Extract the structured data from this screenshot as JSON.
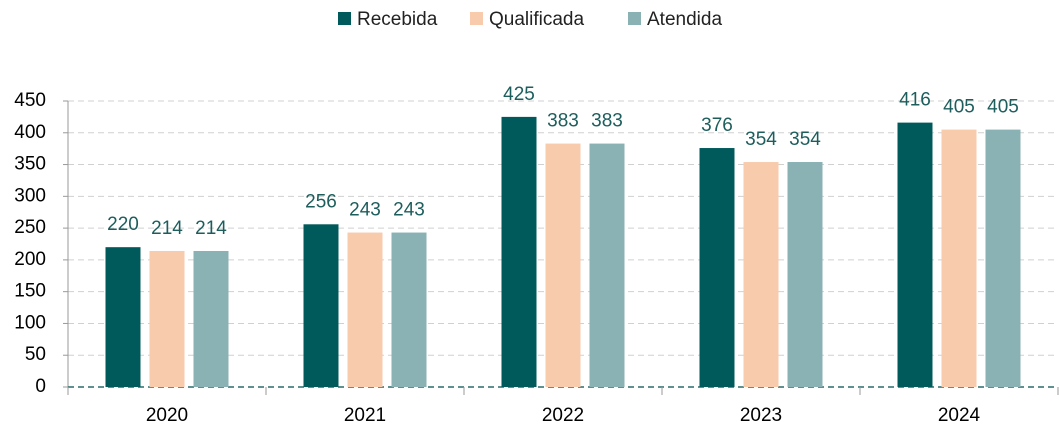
{
  "chart_data": {
    "type": "bar",
    "categories": [
      "2020",
      "2021",
      "2022",
      "2023",
      "2024"
    ],
    "series": [
      {
        "name": "Recebida",
        "color": "#005a5b",
        "values": [
          220,
          256,
          425,
          376,
          416
        ]
      },
      {
        "name": "Qualificada",
        "color": "#f8cbad",
        "values": [
          214,
          243,
          383,
          354,
          405
        ]
      },
      {
        "name": "Atendida",
        "color": "#8ab1b3",
        "values": [
          214,
          243,
          383,
          354,
          405
        ]
      }
    ],
    "ylim": [
      0,
      450
    ],
    "yticks": [
      0,
      50,
      100,
      150,
      200,
      250,
      300,
      350,
      400,
      450
    ],
    "grid": true,
    "legend": "top"
  }
}
